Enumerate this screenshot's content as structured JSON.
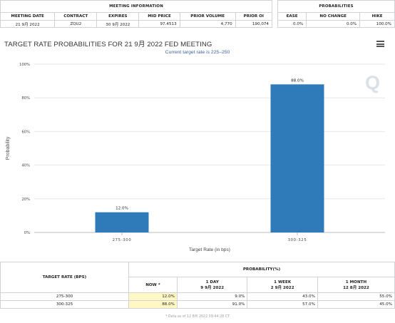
{
  "meeting_info": {
    "group_title": "MEETING INFORMATION",
    "headers": [
      "MEETING DATE",
      "CONTRACT",
      "EXPIRES",
      "MID PRICE",
      "PRIOR VOLUME",
      "PRIOR OI"
    ],
    "row": [
      "21 9月 2022",
      "ZQU2",
      "30 9月 2022",
      "97.4513",
      "4,770",
      "190,074"
    ]
  },
  "probabilities_info": {
    "group_title": "PROBABILITIES",
    "headers": [
      "EASE",
      "NO CHANGE",
      "HIKE"
    ],
    "row": [
      "0.0%",
      "0.0%",
      "100.0%"
    ]
  },
  "chart_header": {
    "title": "TARGET RATE PROBABILITIES FOR 21 9月 2022 FED MEETING",
    "subtitle": "Current target rate is 225–250",
    "menu_icon": "hamburger-menu-icon",
    "logo_icon": "q-watermark-icon",
    "logo_text": "Q"
  },
  "chart_data": {
    "type": "bar",
    "categories": [
      "275-300",
      "300-325"
    ],
    "values": [
      12.0,
      88.0
    ],
    "data_labels": [
      "12.0%",
      "88.0%"
    ],
    "title": "TARGET RATE PROBABILITIES FOR 21 9月 2022 FED MEETING",
    "subtitle": "Current target rate is 225–250",
    "xlabel": "Target Rate (in bps)",
    "ylabel": "Probability",
    "ylim": [
      0,
      100
    ],
    "yticks": [
      0,
      20,
      40,
      60,
      80,
      100
    ],
    "ytick_labels": [
      "0%",
      "20%",
      "40%",
      "60%",
      "80%",
      "100%"
    ],
    "grid": true,
    "bar_color": "#2f7ab8"
  },
  "prob_table": {
    "rate_header": "TARGET RATE (BPS)",
    "group_header": "PROBABILITY(%)",
    "columns": [
      {
        "label": "NOW",
        "sub": ""
      },
      {
        "label": "1 DAY",
        "sub": "9 9月 2022"
      },
      {
        "label": "1 WEEK",
        "sub": "2 9月 2022"
      },
      {
        "label": "1 MONTH",
        "sub": "12 8月 2022"
      }
    ],
    "rows": [
      {
        "rate": "275-300",
        "values": [
          "12.0%",
          "9.0%",
          "43.0%",
          "55.0%"
        ]
      },
      {
        "rate": "300-325",
        "values": [
          "88.0%",
          "91.0%",
          "57.0%",
          "45.0%"
        ]
      }
    ],
    "footnote": "* Data as of 12 8月 2022 09:44:28 CT"
  },
  "colors": {
    "bar": "#2f7ab8",
    "highlight": "#fff8c4",
    "subtitle": "#3b5fa8"
  }
}
